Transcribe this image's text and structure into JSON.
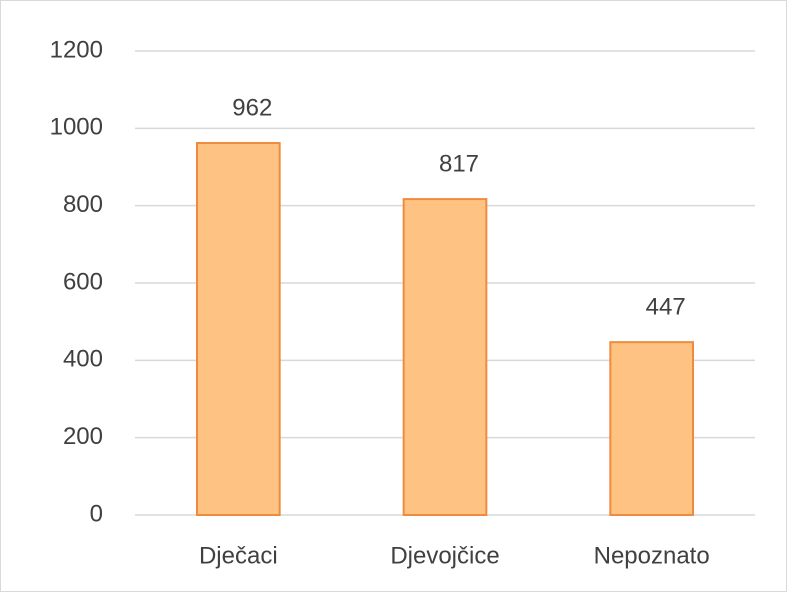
{
  "chart_data": {
    "type": "bar",
    "categories": [
      "Dječaci",
      "Djevojčice",
      "Nepoznato"
    ],
    "values": [
      962,
      817,
      447
    ],
    "color": "#fec383",
    "edge_color": "#ef8b3f",
    "ylim": [
      0,
      1200
    ],
    "yticks": [
      0,
      200,
      400,
      600,
      800,
      1000,
      1200
    ],
    "grid": true,
    "data_labels": true
  }
}
